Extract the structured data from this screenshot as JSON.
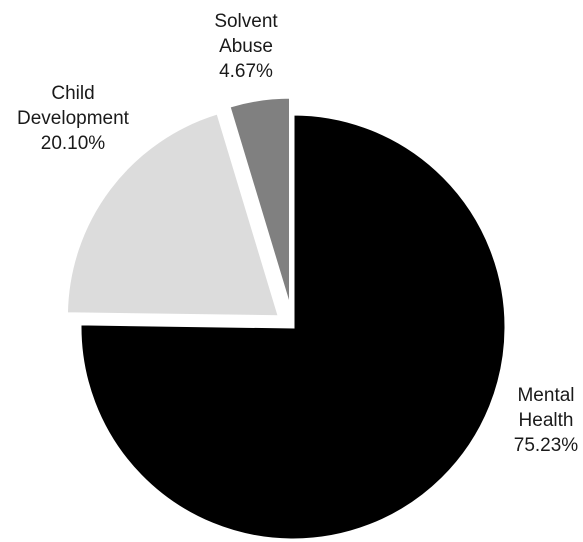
{
  "chart_data": {
    "type": "pie",
    "title": "",
    "start": "12 o'clock",
    "direction": "clockwise",
    "exploded": [
      "Child Development",
      "Solvent Abuse"
    ],
    "slices": [
      {
        "label_lines": [
          "Mental",
          "Health"
        ],
        "name": "Mental Health",
        "value": 75.23,
        "value_label": "75.23%",
        "color": "#000000"
      },
      {
        "label_lines": [
          "Child",
          "Development"
        ],
        "name": "Child Development",
        "value": 20.1,
        "value_label": "20.10%",
        "color": "#dcdcdc"
      },
      {
        "label_lines": [
          "Solvent",
          "Abuse"
        ],
        "name": "Solvent Abuse",
        "value": 4.67,
        "value_label": "4.67%",
        "color": "#808080"
      }
    ]
  }
}
